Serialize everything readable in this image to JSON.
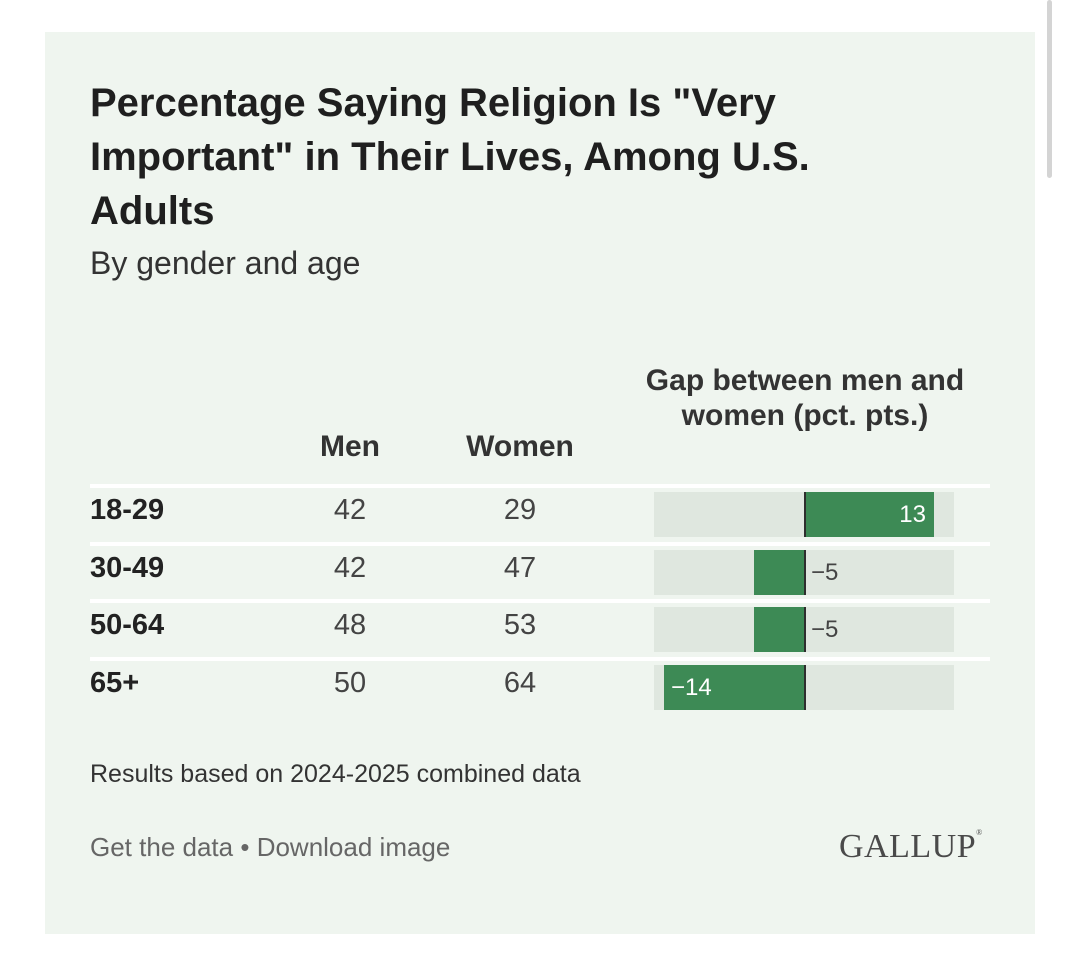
{
  "chart_data": {
    "type": "table",
    "title": "Percentage Saying Religion Is \"Very Important\" in Their Lives, Among U.S. Adults",
    "subtitle": "By gender and age",
    "columns": [
      "Men",
      "Women",
      "Gap between men and women (pct. pts.)"
    ],
    "rows": [
      {
        "label": "18-29",
        "men": 42,
        "women": 29,
        "gap": 13,
        "gap_label": "13"
      },
      {
        "label": "30-49",
        "men": 42,
        "women": 47,
        "gap": -5,
        "gap_label": "−5"
      },
      {
        "label": "50-64",
        "men": 48,
        "women": 53,
        "gap": -5,
        "gap_label": "−5"
      },
      {
        "label": "65+",
        "men": 50,
        "women": 64,
        "gap": -14,
        "gap_label": "−14"
      }
    ],
    "gap_axis_range": [
      -15,
      15
    ],
    "note": "Results based on 2024-2025 combined data"
  },
  "footer": {
    "get_data": "Get the data",
    "separator": "•",
    "download": "Download image",
    "brand": "GALLUP"
  },
  "colors": {
    "background": "#eff5ef",
    "bar": "#3d8a55",
    "track": "#dfe7df"
  }
}
